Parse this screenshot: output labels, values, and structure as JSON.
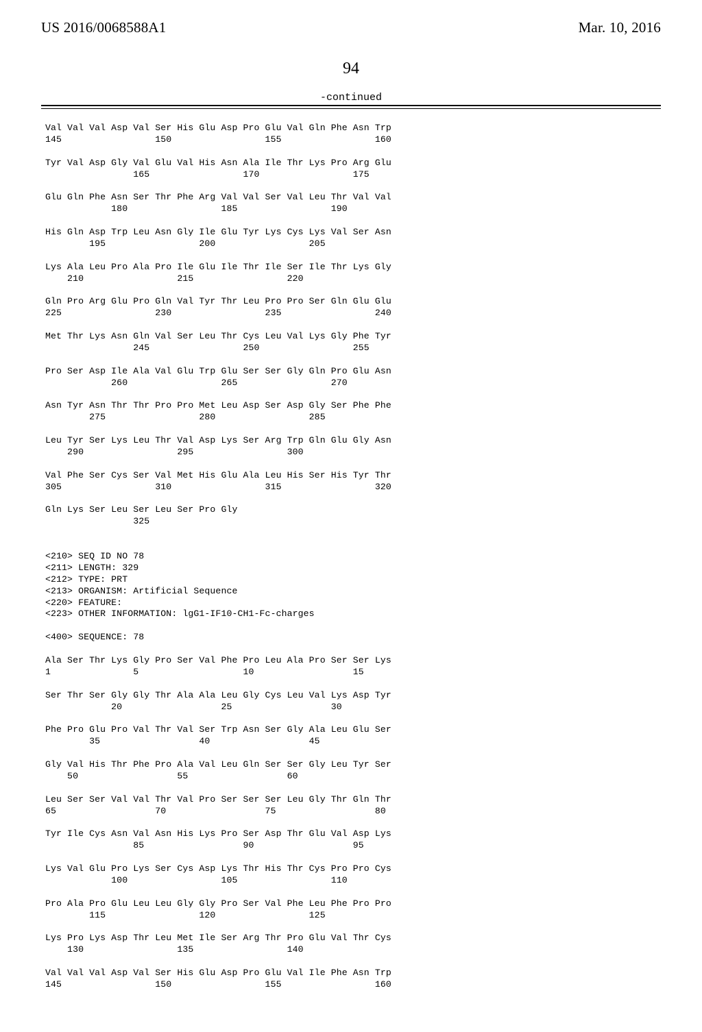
{
  "header": {
    "left": "US 2016/0068588A1",
    "right": "Mar. 10, 2016"
  },
  "page_number": "94",
  "continued_label": "-continued",
  "seq_text": "Val Val Val Asp Val Ser His Glu Asp Pro Glu Val Gln Phe Asn Trp\n145                 150                 155                 160\n\nTyr Val Asp Gly Val Glu Val His Asn Ala Ile Thr Lys Pro Arg Glu\n                165                 170                 175\n\nGlu Gln Phe Asn Ser Thr Phe Arg Val Val Ser Val Leu Thr Val Val\n            180                 185                 190\n\nHis Gln Asp Trp Leu Asn Gly Ile Glu Tyr Lys Cys Lys Val Ser Asn\n        195                 200                 205\n\nLys Ala Leu Pro Ala Pro Ile Glu Ile Thr Ile Ser Ile Thr Lys Gly\n    210                 215                 220\n\nGln Pro Arg Glu Pro Gln Val Tyr Thr Leu Pro Pro Ser Gln Glu Glu\n225                 230                 235                 240\n\nMet Thr Lys Asn Gln Val Ser Leu Thr Cys Leu Val Lys Gly Phe Tyr\n                245                 250                 255\n\nPro Ser Asp Ile Ala Val Glu Trp Glu Ser Ser Gly Gln Pro Glu Asn\n            260                 265                 270\n\nAsn Tyr Asn Thr Thr Pro Pro Met Leu Asp Ser Asp Gly Ser Phe Phe\n        275                 280                 285\n\nLeu Tyr Ser Lys Leu Thr Val Asp Lys Ser Arg Trp Gln Glu Gly Asn\n    290                 295                 300\n\nVal Phe Ser Cys Ser Val Met His Glu Ala Leu His Ser His Tyr Thr\n305                 310                 315                 320\n\nGln Lys Ser Leu Ser Leu Ser Pro Gly\n                325\n\n\n<210> SEQ ID NO 78\n<211> LENGTH: 329\n<212> TYPE: PRT\n<213> ORGANISM: Artificial Sequence\n<220> FEATURE:\n<223> OTHER INFORMATION: lgG1-IF10-CH1-Fc-charges\n\n<400> SEQUENCE: 78\n\nAla Ser Thr Lys Gly Pro Ser Val Phe Pro Leu Ala Pro Ser Ser Lys\n1               5                   10                  15\n\nSer Thr Ser Gly Gly Thr Ala Ala Leu Gly Cys Leu Val Lys Asp Tyr\n            20                  25                  30\n\nPhe Pro Glu Pro Val Thr Val Ser Trp Asn Ser Gly Ala Leu Glu Ser\n        35                  40                  45\n\nGly Val His Thr Phe Pro Ala Val Leu Gln Ser Ser Gly Leu Tyr Ser\n    50                  55                  60\n\nLeu Ser Ser Val Val Thr Val Pro Ser Ser Ser Leu Gly Thr Gln Thr\n65                  70                  75                  80\n\nTyr Ile Cys Asn Val Asn His Lys Pro Ser Asp Thr Glu Val Asp Lys\n                85                  90                  95\n\nLys Val Glu Pro Lys Ser Cys Asp Lys Thr His Thr Cys Pro Pro Cys\n            100                 105                 110\n\nPro Ala Pro Glu Leu Leu Gly Gly Pro Ser Val Phe Leu Phe Pro Pro\n        115                 120                 125\n\nLys Pro Lys Asp Thr Leu Met Ile Ser Arg Thr Pro Glu Val Thr Cys\n    130                 135                 140\n\nVal Val Val Asp Val Ser His Glu Asp Pro Glu Val Ile Phe Asn Trp\n145                 150                 155                 160"
}
